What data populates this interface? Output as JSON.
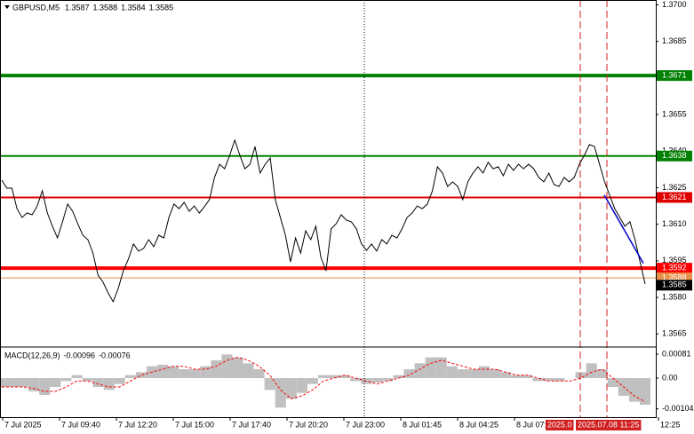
{
  "chart_data": [
    {
      "type": "line",
      "symbol": "GBPUSD,M5",
      "ohlc": [
        1.3587,
        1.3588,
        1.3584,
        1.3585
      ],
      "ylim": [
        1.356,
        1.3702
      ],
      "yticks": [
        {
          "value": 1.37,
          "label": "1.3700"
        },
        1.3685,
        {
          "value": 1.367,
          "label": "1.3670"
        },
        1.3655,
        {
          "value": 1.364,
          "label": "1.3640"
        },
        1.3625,
        {
          "value": 1.361,
          "label": "1.3610"
        },
        1.3595,
        {
          "value": 1.358,
          "label": "1.3580"
        },
        1.3565
      ],
      "series": [
        {
          "color": "#000000",
          "values": [
            1.36281,
            1.36248,
            1.36248,
            1.36164,
            1.36128,
            1.36146,
            1.36139,
            1.36175,
            1.36237,
            1.36146,
            1.36092,
            1.36044,
            1.3611,
            1.36183,
            1.36153,
            1.36102,
            1.36055,
            1.36037,
            1.35982,
            1.35891,
            1.35862,
            1.35818,
            1.35782,
            1.35837,
            1.35909,
            1.35957,
            1.36019,
            1.3599,
            1.36001,
            1.36037,
            1.36008,
            1.36055,
            1.36044,
            1.36128,
            1.36183,
            1.36164,
            1.3619,
            1.36153,
            1.36175,
            1.36146,
            1.36172,
            1.36201,
            1.36292,
            1.36346,
            1.36328,
            1.36383,
            1.36445,
            1.36383,
            1.36328,
            1.36346,
            1.36419,
            1.3631,
            1.36346,
            1.36372,
            1.36201,
            1.36128,
            1.36055,
            1.35946,
            1.36044,
            1.35982,
            1.36073,
            1.36037,
            1.36092,
            1.35964,
            1.35909,
            1.36081,
            1.36102,
            1.36139,
            1.36117,
            1.3611,
            1.36081,
            1.36019,
            1.35993,
            1.36019,
            1.3599,
            1.36037,
            1.36019,
            1.36055,
            1.36044,
            1.36081,
            1.36128,
            1.36146,
            1.36175,
            1.36164,
            1.36183,
            1.36237,
            1.36336,
            1.3631,
            1.36255,
            1.36274,
            1.36255,
            1.36201,
            1.36274,
            1.3631,
            1.36336,
            1.3631,
            1.36354,
            1.36328,
            1.36336,
            1.36299,
            1.36346,
            1.36321,
            1.36346,
            1.36328,
            1.36346,
            1.36328,
            1.36292,
            1.36274,
            1.3631,
            1.36263,
            1.36255,
            1.36292,
            1.36274,
            1.36292,
            1.36346,
            1.36383,
            1.36427,
            1.36419,
            1.36346,
            1.36274,
            1.36219,
            1.36164,
            1.36128,
            1.36092,
            1.3611,
            1.36037,
            1.35946,
            1.35855
          ]
        }
      ],
      "trendline": {
        "color": "#0000cc",
        "values": [
          1.3622,
          1.3594
        ]
      },
      "levels": [
        {
          "value": 1.3671,
          "color": "#008000",
          "width": 4
        },
        {
          "value": 1.3638,
          "color": "#008000",
          "width": 2
        },
        {
          "value": 1.3621,
          "color": "#e00000",
          "width": 2
        },
        {
          "value": 1.3592,
          "color": "#ff0000",
          "width": 4
        },
        {
          "value": 1.3588,
          "color": "#e8904a",
          "width": 1
        }
      ],
      "bid": 1.3585,
      "x_labels": [
        "7 Jul 2025",
        "7 Jul 09:40",
        "7 Jul 12:20",
        "7 Jul 15:00",
        "7 Jul 17:40",
        "7 Jul 20:20",
        "7 Jul 23:00",
        "8 Jul 01:45",
        "8 Jul 04:25",
        "8 Jul 07:",
        "12:25"
      ],
      "markers": [
        "2025.0",
        "2025.07.08 11:25"
      ]
    },
    {
      "type": "bar",
      "title": "MACD(12,26,9)",
      "values_shown": [
        -0.00096,
        -0.00076
      ],
      "ylim": [
        -0.0012,
        0.00099
      ],
      "yticks": [
        0.00081,
        {
          "value": 0,
          "label": "0.00"
        },
        -0.00104
      ],
      "series": [
        {
          "type": "bar",
          "color": "#c0c0c0",
          "values": [
            -0.0003,
            -0.0003,
            -0.0003,
            -0.00045,
            -0.00057,
            -0.0003,
            -0.0001,
            0.0001,
            -0.0001,
            -0.0003,
            -0.0004,
            -0.0002,
            0.0001,
            0.0002,
            0.0004,
            0.00045,
            0.0004,
            0.0003,
            0.0003,
            0.0004,
            0.0006,
            0.0008,
            0.0007,
            0.0005,
            0.0003,
            -0.0004,
            -0.001,
            -0.0007,
            -0.0005,
            -0.0002,
            0.0001,
            0.0001,
            0.0001,
            -0.0001,
            -0.0002,
            -0.00015,
            -0.0001,
            0.0001,
            0.0003,
            0.0005,
            0.0007,
            0.0007,
            0.0004,
            0.0003,
            0.0003,
            0.0004,
            0.0003,
            0.0002,
            0.0001,
            0.0001,
            -0.0001,
            -0.0001,
            -0.0001,
            0,
            0.0002,
            0.0005,
            0.0003,
            -0.0003,
            -0.0006,
            -0.0008,
            -0.0009
          ]
        },
        {
          "type": "line",
          "color": "#ff0000",
          "dash": true,
          "values": [
            -0.0003,
            -0.0003,
            -0.0003,
            -0.00035,
            -0.00045,
            -0.00045,
            -0.0003,
            -0.0001,
            -0.0001,
            -0.0002,
            -0.0003,
            -0.0003,
            -0.0001,
            0.0001,
            0.0002,
            0.0003,
            0.0004,
            0.0004,
            0.0003,
            0.0003,
            0.0004,
            0.0006,
            0.0007,
            0.0006,
            0.0004,
            0.0001,
            -0.0004,
            -0.0007,
            -0.0006,
            -0.0004,
            -0.0001,
            0,
            0.0001,
            0,
            -0.0001,
            -0.0002,
            -0.0001,
            0,
            0.0001,
            0.0003,
            0.0005,
            0.0006,
            0.0005,
            0.0004,
            0.0003,
            0.0003,
            0.0003,
            0.0002,
            0.0001,
            0.0001,
            0,
            -0.0001,
            -0.0001,
            -0.0001,
            0,
            0.0002,
            0.0003,
            0,
            -0.0003,
            -0.0006,
            -0.0008
          ]
        }
      ]
    }
  ]
}
